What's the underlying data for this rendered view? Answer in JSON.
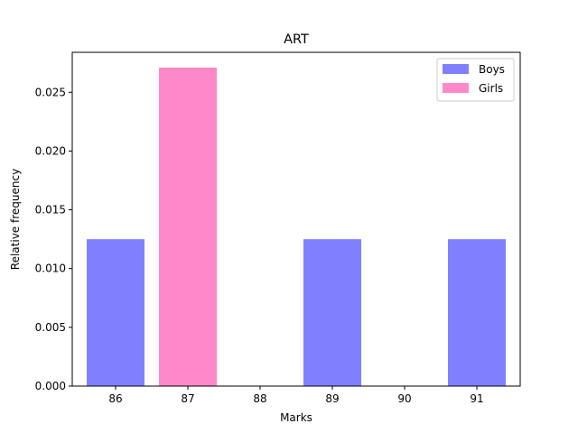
{
  "chart_data": {
    "type": "bar",
    "title": "ART",
    "xlabel": "Marks",
    "ylabel": "Relative frequency",
    "categories": [
      "86",
      "87",
      "88",
      "89",
      "90",
      "91"
    ],
    "x_values": [
      86,
      87,
      88,
      89,
      90,
      91
    ],
    "xlim": [
      85.4,
      91.6
    ],
    "ylim": [
      0,
      0.0284
    ],
    "y_ticks": [
      0.0,
      0.005,
      0.01,
      0.015,
      0.02,
      0.025
    ],
    "y_tick_labels": [
      "0.000",
      "0.005",
      "0.010",
      "0.015",
      "0.020",
      "0.025"
    ],
    "grid": false,
    "legend_position": "top-right",
    "series": [
      {
        "name": "Boys",
        "color": "#8080ff",
        "points": [
          {
            "x": 86,
            "y": 0.0125
          },
          {
            "x": 89,
            "y": 0.0125
          },
          {
            "x": 91,
            "y": 0.0125
          }
        ]
      },
      {
        "name": "Girls",
        "color": "#ff88c8",
        "points": [
          {
            "x": 87,
            "y": 0.0271
          }
        ]
      }
    ]
  }
}
